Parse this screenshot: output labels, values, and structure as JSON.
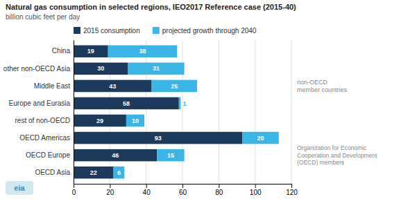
{
  "chart_data": {
    "type": "bar",
    "orientation": "horizontal",
    "stacked": true,
    "title": "Natural gas consumption in selected regions, IEO2017 Reference case (2015-40)",
    "subtitle": "billion cubic feet per day",
    "categories": [
      "China",
      "other non-OECD Asia",
      "Middle East",
      "Europe and Eurasia",
      "rest of non-OECD",
      "OECD Americas",
      "OECD Europe",
      "OECD Asia"
    ],
    "series": [
      {
        "name": "2015 consumption",
        "color": "#1b3a5c",
        "values": [
          19,
          30,
          43,
          58,
          29,
          93,
          46,
          22
        ]
      },
      {
        "name": "projected growth through 2040",
        "color": "#3ab5e5",
        "values": [
          38,
          31,
          25,
          1,
          10,
          20,
          15,
          6
        ]
      }
    ],
    "xlim": [
      0,
      120
    ],
    "xticks": [
      0,
      20,
      40,
      60,
      80,
      100,
      120
    ],
    "grid": true,
    "legend": "top",
    "data_labels": true,
    "annotations": [
      "non-OECD\nmember countries",
      "Organization for Economic\nCooperation and Development\n(OECD) members",
      "eia"
    ]
  }
}
